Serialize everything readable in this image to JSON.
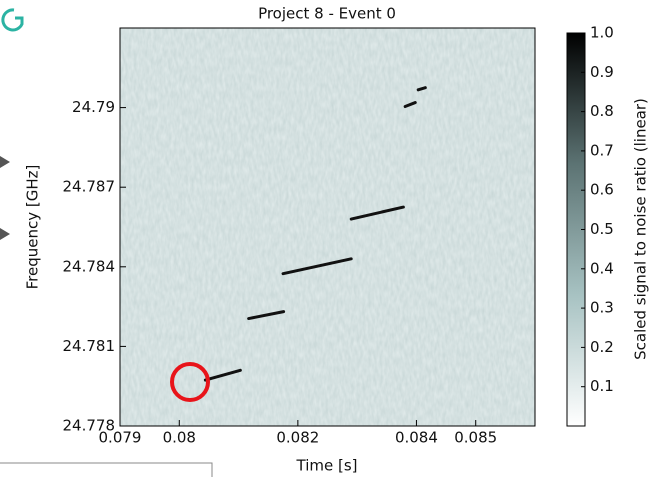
{
  "chart_data": {
    "type": "spectrogram",
    "title": "Project 8 - Event 0",
    "x_label": "Time [s]",
    "y_label": "Frequency [GHz]",
    "xlim": [
      0.079,
      0.086
    ],
    "xticks": [
      0.079,
      0.08,
      0.082,
      0.084,
      0.085
    ],
    "ylim": [
      24.778,
      24.793
    ],
    "yticks": [
      24.778,
      24.781,
      24.784,
      24.787,
      24.79
    ],
    "tracks": [
      [
        0.08044,
        24.77973,
        0.08103,
        24.7801
      ],
      [
        0.08117,
        24.78205,
        0.08176,
        24.78231
      ],
      [
        0.08175,
        24.78374,
        0.0829,
        24.7843
      ],
      [
        0.0829,
        24.7858,
        0.08378,
        24.78625
      ],
      [
        0.08381,
        24.79004,
        0.08398,
        24.79019
      ],
      [
        0.08403,
        24.79067,
        0.08415,
        24.79075
      ]
    ],
    "track_color": "#111111",
    "colorbar": {
      "label": "Scaled signal to noise ratio (linear)",
      "lim": [
        0,
        1
      ],
      "ticks": [
        0.1,
        0.2,
        0.3,
        0.4,
        0.5,
        0.6,
        0.7,
        0.8,
        0.9,
        {
          "value": 1,
          "label": "1.0"
        }
      ],
      "colors": [
        "#ffffff",
        "#a7c2c2",
        "#5c7373",
        "#000000"
      ]
    }
  }
}
